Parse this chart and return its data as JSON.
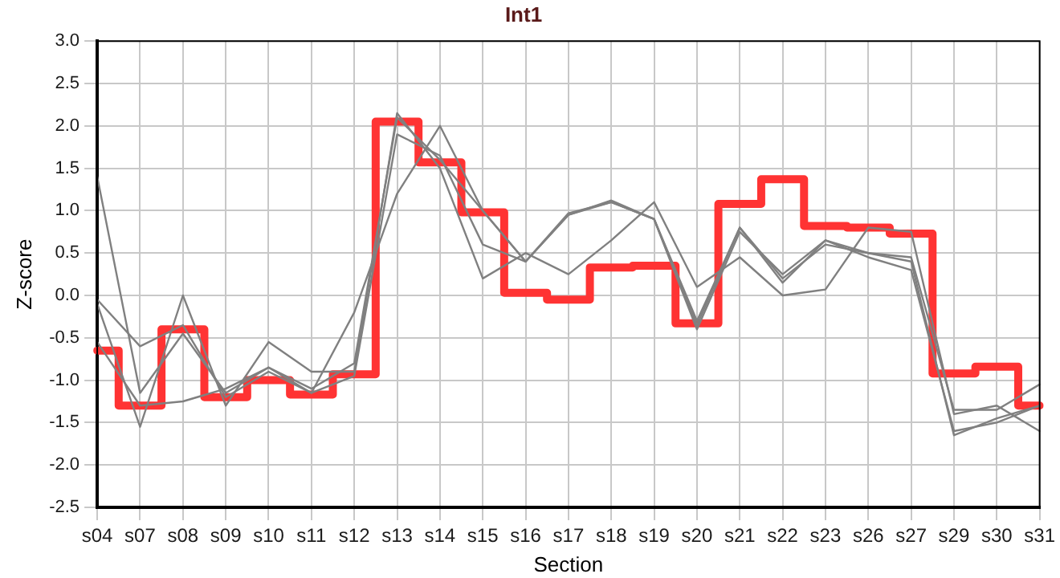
{
  "chart_data": {
    "type": "line",
    "title": "Int1",
    "xlabel": "Section",
    "ylabel": "Z-score",
    "categories": [
      "s04",
      "s07",
      "s08",
      "s09",
      "s10",
      "s11",
      "s12",
      "s13",
      "s14",
      "s15",
      "s16",
      "s17",
      "s18",
      "s19",
      "s20",
      "s21",
      "s22",
      "s23",
      "s26",
      "s27",
      "s29",
      "s30",
      "s31"
    ],
    "ylim": [
      -2.5,
      3.0
    ],
    "yticks": [
      {
        "value": -2.5,
        "label": "-2.5"
      },
      {
        "value": -2,
        "label": "-2.0"
      },
      {
        "value": -1.5,
        "label": "-1.5"
      },
      {
        "value": -1,
        "label": "-1.0"
      },
      {
        "value": -0.5,
        "label": "-0.5"
      },
      {
        "value": 0,
        "label": "0.0"
      },
      {
        "value": 0.5,
        "label": "0.5"
      },
      {
        "value": 1,
        "label": "1.0"
      },
      {
        "value": 1.5,
        "label": "1.5"
      },
      {
        "value": 2,
        "label": "2.0"
      },
      {
        "value": 2.5,
        "label": "2.5"
      },
      {
        "value": 3,
        "label": "3.0"
      }
    ],
    "grid": true,
    "legend": false,
    "marker": "none",
    "series": [
      {
        "color": "#808080",
        "values": [
          1.4,
          -1.15,
          -0.45,
          -1.15,
          -0.85,
          -1.1,
          -0.8,
          2.1,
          1.6,
          1.0,
          0.4,
          0.97,
          1.1,
          0.9,
          -0.35,
          0.8,
          0.15,
          0.65,
          0.5,
          0.45,
          -1.35,
          -1.35,
          -1.05
        ]
      },
      {
        "color": "#808080",
        "values": [
          -0.05,
          -0.6,
          -0.35,
          -1.2,
          -0.9,
          -1.15,
          -0.2,
          1.2,
          2.0,
          1.0,
          0.4,
          0.95,
          1.12,
          0.9,
          -0.4,
          0.75,
          0.25,
          0.65,
          0.45,
          0.3,
          -1.6,
          -1.5,
          -1.3
        ]
      },
      {
        "color": "#808080",
        "values": [
          -0.1,
          -1.55,
          0.0,
          -1.3,
          -0.55,
          -0.9,
          -0.9,
          2.15,
          1.5,
          0.2,
          0.5,
          0.25,
          0.65,
          1.1,
          0.1,
          0.45,
          0.0,
          0.07,
          0.8,
          0.75,
          -1.4,
          -1.3,
          -1.6
        ]
      },
      {
        "color": "#808080",
        "values": [
          -0.55,
          -1.3,
          -1.25,
          -1.1,
          -0.85,
          -1.15,
          -0.95,
          1.9,
          1.65,
          0.6,
          0.4,
          0.95,
          1.1,
          0.9,
          -0.3,
          0.8,
          0.2,
          0.6,
          0.5,
          0.4,
          -1.65,
          -1.45,
          -1.3
        ]
      },
      {
        "type": "step",
        "color": "#ff3333",
        "values": [
          -0.65,
          -1.3,
          -0.4,
          -1.2,
          -1.0,
          -1.17,
          -0.93,
          2.05,
          1.57,
          0.98,
          0.03,
          -0.05,
          0.33,
          0.35,
          -0.33,
          1.08,
          1.37,
          0.82,
          0.8,
          0.73,
          -0.92,
          -0.84,
          -1.3
        ]
      }
    ]
  }
}
